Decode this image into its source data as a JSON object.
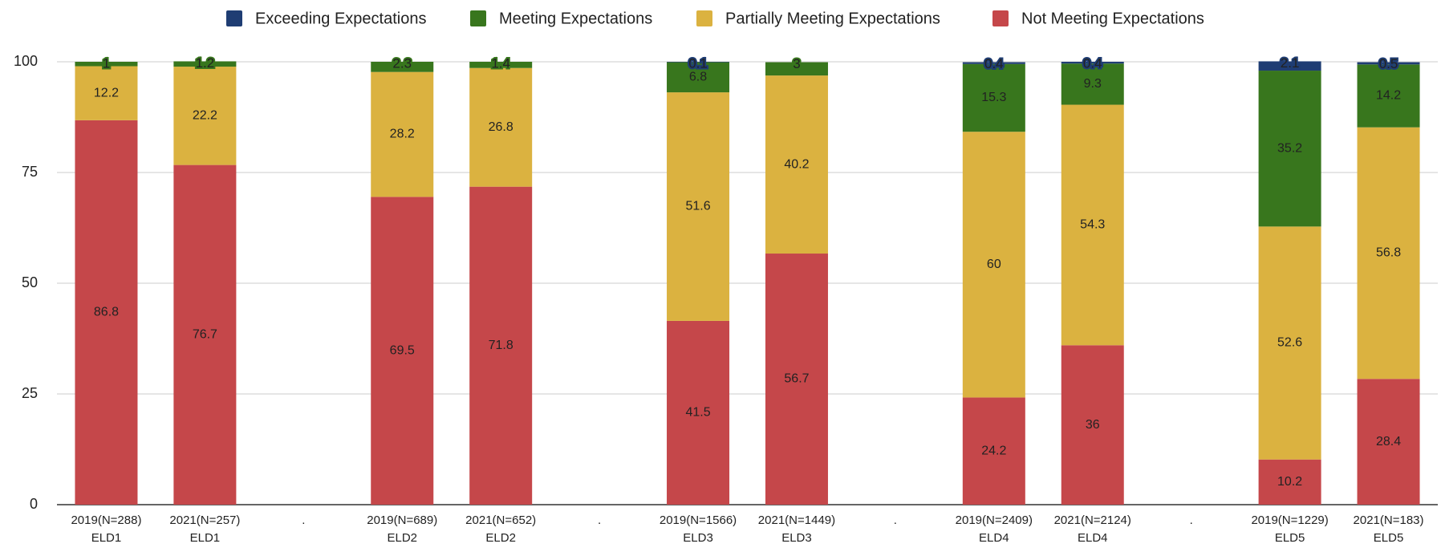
{
  "chart_data": {
    "type": "stacked_bar",
    "categories": [
      [
        "2019(N=288)",
        "ELD1"
      ],
      [
        "2021(N=257)",
        "ELD1"
      ],
      [
        "."
      ],
      [
        "2019(N=689)",
        "ELD2"
      ],
      [
        "2021(N=652)",
        "ELD2"
      ],
      [
        "."
      ],
      [
        "2019(N=1566)",
        "ELD3"
      ],
      [
        "2021(N=1449)",
        "ELD3"
      ],
      [
        "."
      ],
      [
        "2019(N=2409)",
        "ELD4"
      ],
      [
        "2021(N=2124)",
        "ELD4"
      ],
      [
        "."
      ],
      [
        "2019(N=1229)",
        "ELD5"
      ],
      [
        "2021(N=183)",
        "ELD5"
      ]
    ],
    "series": [
      {
        "name": "Exceeding Expectations",
        "color": "#1f3d73",
        "values": [
          null,
          null,
          null,
          null,
          null,
          null,
          0.1,
          null,
          null,
          0.4,
          0.4,
          null,
          2.1,
          0.5
        ]
      },
      {
        "name": "Meeting Expectations",
        "color": "#38761d",
        "values": [
          1,
          1.2,
          null,
          2.3,
          1.4,
          null,
          6.8,
          3,
          null,
          15.3,
          9.3,
          null,
          35.2,
          14.2
        ]
      },
      {
        "name": "Partially Meeting Expectations",
        "color": "#dbb240",
        "values": [
          12.2,
          22.2,
          null,
          28.2,
          26.8,
          null,
          51.6,
          40.2,
          null,
          60,
          54.3,
          null,
          52.6,
          56.8
        ]
      },
      {
        "name": "Not Meeting Expectations",
        "color": "#c5474a",
        "values": [
          86.8,
          76.7,
          null,
          69.5,
          71.8,
          null,
          41.5,
          56.7,
          null,
          24.2,
          36,
          null,
          10.2,
          28.4
        ]
      }
    ],
    "ylim": [
      0,
      100
    ],
    "yticks": [
      0,
      25,
      50,
      75,
      100
    ],
    "grid": true,
    "legend": "top"
  }
}
